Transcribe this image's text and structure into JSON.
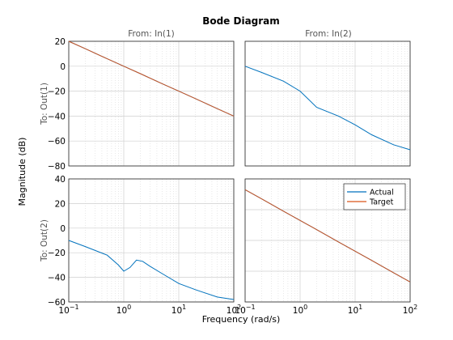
{
  "chart_data": {
    "type": "line",
    "title": "Bode Diagram",
    "xlabel": "Frequency  (rad/s)",
    "ylabel": "Magnitude (dB)",
    "xscale": "log",
    "xlim": [
      0.1,
      100
    ],
    "x_ticks": [
      0.1,
      1,
      10,
      100
    ],
    "grid": true,
    "legend_placement": "top-right of bottom-right panel",
    "columns": [
      "From: In(1)",
      "From: In(2)"
    ],
    "rows": [
      "To: Out(1)",
      "To: Out(2)"
    ],
    "legend": [
      "Actual",
      "Target"
    ],
    "colors": {
      "Actual": "#0072bd",
      "Target": "#d95319"
    },
    "panels": [
      {
        "row": 0,
        "col": 0,
        "ylim": [
          -80,
          20
        ],
        "y_ticks": [
          -80,
          -60,
          -40,
          -20,
          0,
          20
        ],
        "series": [
          {
            "name": "Actual",
            "x": [
              0.1,
              0.2,
              0.5,
              1,
              2,
              5,
              10,
              20,
              50,
              100
            ],
            "y": [
              20,
              14,
              6,
              0,
              -6,
              -14,
              -20,
              -26,
              -34,
              -40
            ]
          },
          {
            "name": "Target",
            "x": [
              0.1,
              0.2,
              0.5,
              1,
              2,
              5,
              10,
              20,
              50,
              100
            ],
            "y": [
              20,
              14,
              6,
              0,
              -6,
              -14,
              -20,
              -26,
              -34,
              -40
            ]
          }
        ]
      },
      {
        "row": 0,
        "col": 1,
        "ylim": [
          -80,
          20
        ],
        "y_ticks": [
          -80,
          -60,
          -40,
          -20,
          0,
          20
        ],
        "series": [
          {
            "name": "Actual",
            "x": [
              0.1,
              0.2,
              0.5,
              1,
              2,
              5,
              10,
              20,
              50,
              100
            ],
            "y": [
              0,
              -5,
              -12,
              -20,
              -33,
              -40,
              -47,
              -55,
              -63,
              -67
            ]
          }
        ]
      },
      {
        "row": 1,
        "col": 0,
        "ylim": [
          -60,
          40
        ],
        "y_ticks": [
          -60,
          -40,
          -20,
          0,
          20,
          40
        ],
        "series": [
          {
            "name": "Actual",
            "x": [
              0.1,
              0.2,
              0.5,
              0.8,
              1,
              1.3,
              1.7,
              2.2,
              3,
              5,
              10,
              20,
              50,
              100
            ],
            "y": [
              -10,
              -15,
              -22,
              -30,
              -35,
              -32,
              -26,
              -27,
              -31,
              -37,
              -45,
              -50,
              -56,
              -58
            ]
          }
        ]
      },
      {
        "row": 1,
        "col": 1,
        "ylim": [
          -40,
          40
        ],
        "y_ticks": [
          -40,
          -20,
          0,
          20,
          40
        ],
        "series": [
          {
            "name": "Actual",
            "x": [
              0.1,
              0.2,
              0.5,
              1,
              2,
              5,
              10,
              20,
              50,
              100
            ],
            "y": [
              33,
              27,
              19,
              13,
              7,
              -1,
              -7,
              -13,
              -21,
              -27
            ]
          },
          {
            "name": "Target",
            "x": [
              0.1,
              0.2,
              0.5,
              1,
              2,
              5,
              10,
              20,
              50,
              100
            ],
            "y": [
              33,
              27,
              19,
              13,
              7,
              -1,
              -7,
              -13,
              -21,
              -27
            ]
          }
        ]
      }
    ]
  }
}
